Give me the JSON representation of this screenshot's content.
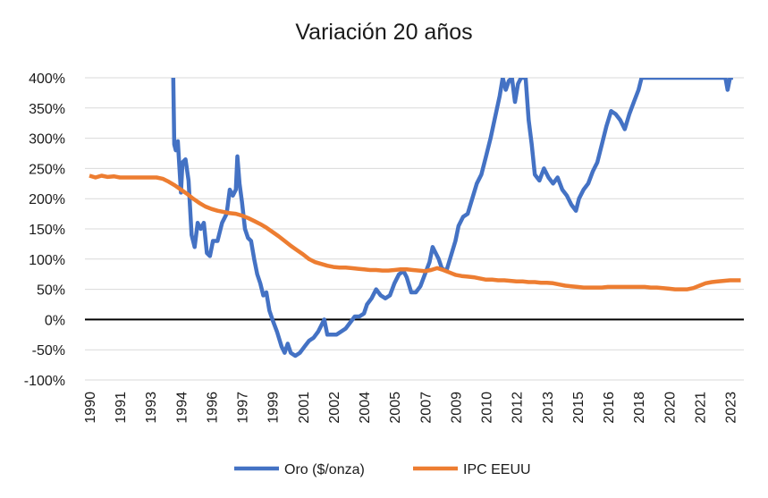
{
  "chart_data": {
    "type": "line",
    "title": "Variación 20 años",
    "xlabel": "",
    "ylabel": "",
    "ylim": [
      -100,
      400
    ],
    "y_ticks": [
      "-100%",
      "-50%",
      "0%",
      "50%",
      "100%",
      "150%",
      "200%",
      "250%",
      "300%",
      "350%",
      "400%"
    ],
    "x_ticks": [
      "1990",
      "1991",
      "1993",
      "1994",
      "1996",
      "1997",
      "1999",
      "2001",
      "2002",
      "2004",
      "2005",
      "2007",
      "2009",
      "2010",
      "2012",
      "2013",
      "2015",
      "2016",
      "2018",
      "2020",
      "2021",
      "2023"
    ],
    "grid": true,
    "legend_position": "bottom",
    "series": [
      {
        "name": "Oro ($/onza)",
        "color": "#4472C4",
        "points": [
          [
            2.75,
            400
          ],
          [
            2.78,
            290
          ],
          [
            2.83,
            280
          ],
          [
            2.9,
            295
          ],
          [
            3.0,
            210
          ],
          [
            3.05,
            260
          ],
          [
            3.15,
            265
          ],
          [
            3.25,
            230
          ],
          [
            3.35,
            140
          ],
          [
            3.45,
            120
          ],
          [
            3.55,
            160
          ],
          [
            3.65,
            150
          ],
          [
            3.75,
            160
          ],
          [
            3.85,
            110
          ],
          [
            3.95,
            105
          ],
          [
            4.05,
            130
          ],
          [
            4.2,
            130
          ],
          [
            4.35,
            160
          ],
          [
            4.5,
            175
          ],
          [
            4.6,
            215
          ],
          [
            4.7,
            205
          ],
          [
            4.8,
            215
          ],
          [
            4.85,
            270
          ],
          [
            4.92,
            225
          ],
          [
            5.0,
            195
          ],
          [
            5.1,
            150
          ],
          [
            5.2,
            135
          ],
          [
            5.3,
            130
          ],
          [
            5.4,
            100
          ],
          [
            5.5,
            75
          ],
          [
            5.6,
            60
          ],
          [
            5.7,
            40
          ],
          [
            5.8,
            45
          ],
          [
            5.9,
            15
          ],
          [
            6.0,
            0
          ],
          [
            6.15,
            -20
          ],
          [
            6.3,
            -45
          ],
          [
            6.4,
            -55
          ],
          [
            6.5,
            -40
          ],
          [
            6.6,
            -55
          ],
          [
            6.75,
            -60
          ],
          [
            6.9,
            -55
          ],
          [
            7.05,
            -45
          ],
          [
            7.2,
            -35
          ],
          [
            7.35,
            -30
          ],
          [
            7.5,
            -20
          ],
          [
            7.6,
            -10
          ],
          [
            7.7,
            0
          ],
          [
            7.8,
            -25
          ],
          [
            7.95,
            -25
          ],
          [
            8.1,
            -25
          ],
          [
            8.25,
            -20
          ],
          [
            8.4,
            -15
          ],
          [
            8.55,
            -5
          ],
          [
            8.7,
            5
          ],
          [
            8.85,
            5
          ],
          [
            9.0,
            10
          ],
          [
            9.1,
            25
          ],
          [
            9.25,
            35
          ],
          [
            9.4,
            50
          ],
          [
            9.55,
            40
          ],
          [
            9.7,
            35
          ],
          [
            9.85,
            40
          ],
          [
            10.0,
            60
          ],
          [
            10.15,
            75
          ],
          [
            10.3,
            80
          ],
          [
            10.4,
            70
          ],
          [
            10.55,
            45
          ],
          [
            10.7,
            45
          ],
          [
            10.85,
            55
          ],
          [
            11.0,
            75
          ],
          [
            11.15,
            95
          ],
          [
            11.25,
            120
          ],
          [
            11.35,
            110
          ],
          [
            11.45,
            100
          ],
          [
            11.55,
            85
          ],
          [
            11.7,
            80
          ],
          [
            11.85,
            105
          ],
          [
            12.0,
            130
          ],
          [
            12.1,
            155
          ],
          [
            12.25,
            170
          ],
          [
            12.4,
            175
          ],
          [
            12.55,
            200
          ],
          [
            12.7,
            225
          ],
          [
            12.85,
            240
          ],
          [
            13.0,
            270
          ],
          [
            13.15,
            300
          ],
          [
            13.3,
            335
          ],
          [
            13.45,
            370
          ],
          [
            13.55,
            400
          ],
          [
            13.65,
            380
          ],
          [
            13.75,
            395
          ],
          [
            13.85,
            400
          ],
          [
            13.95,
            360
          ],
          [
            14.05,
            390
          ],
          [
            14.15,
            400
          ],
          [
            14.3,
            400
          ],
          [
            14.4,
            330
          ],
          [
            14.5,
            290
          ],
          [
            14.6,
            240
          ],
          [
            14.75,
            230
          ],
          [
            14.9,
            250
          ],
          [
            15.05,
            235
          ],
          [
            15.2,
            225
          ],
          [
            15.35,
            235
          ],
          [
            15.5,
            215
          ],
          [
            15.65,
            205
          ],
          [
            15.8,
            190
          ],
          [
            15.95,
            180
          ],
          [
            16.05,
            200
          ],
          [
            16.2,
            215
          ],
          [
            16.35,
            225
          ],
          [
            16.5,
            245
          ],
          [
            16.65,
            260
          ],
          [
            16.8,
            290
          ],
          [
            16.95,
            320
          ],
          [
            17.1,
            345
          ],
          [
            17.25,
            340
          ],
          [
            17.4,
            330
          ],
          [
            17.55,
            315
          ],
          [
            17.7,
            340
          ],
          [
            17.85,
            360
          ],
          [
            18.0,
            380
          ],
          [
            18.1,
            400
          ],
          [
            18.25,
            400
          ],
          [
            18.45,
            400
          ],
          [
            20.85,
            400
          ],
          [
            20.92,
            380
          ],
          [
            21.0,
            400
          ],
          [
            21.1,
            400
          ]
        ]
      },
      {
        "name": "IPC EEUU",
        "color": "#ED7D31",
        "points": [
          [
            0.0,
            238
          ],
          [
            0.2,
            235
          ],
          [
            0.4,
            238
          ],
          [
            0.6,
            236
          ],
          [
            0.8,
            237
          ],
          [
            1.0,
            235
          ],
          [
            1.2,
            235
          ],
          [
            1.4,
            235
          ],
          [
            1.6,
            235
          ],
          [
            1.8,
            235
          ],
          [
            2.0,
            235
          ],
          [
            2.2,
            235
          ],
          [
            2.4,
            233
          ],
          [
            2.6,
            228
          ],
          [
            2.8,
            222
          ],
          [
            3.0,
            215
          ],
          [
            3.2,
            208
          ],
          [
            3.4,
            200
          ],
          [
            3.6,
            193
          ],
          [
            3.8,
            187
          ],
          [
            4.0,
            183
          ],
          [
            4.2,
            180
          ],
          [
            4.4,
            178
          ],
          [
            4.6,
            176
          ],
          [
            4.8,
            175
          ],
          [
            5.0,
            172
          ],
          [
            5.2,
            168
          ],
          [
            5.4,
            163
          ],
          [
            5.6,
            158
          ],
          [
            5.8,
            152
          ],
          [
            6.0,
            145
          ],
          [
            6.2,
            138
          ],
          [
            6.4,
            130
          ],
          [
            6.6,
            122
          ],
          [
            6.8,
            115
          ],
          [
            7.0,
            108
          ],
          [
            7.2,
            100
          ],
          [
            7.4,
            95
          ],
          [
            7.6,
            92
          ],
          [
            7.8,
            89
          ],
          [
            8.0,
            87
          ],
          [
            8.2,
            86
          ],
          [
            8.4,
            86
          ],
          [
            8.6,
            85
          ],
          [
            8.8,
            84
          ],
          [
            9.0,
            83
          ],
          [
            9.2,
            82
          ],
          [
            9.4,
            82
          ],
          [
            9.6,
            81
          ],
          [
            9.8,
            81
          ],
          [
            10.0,
            82
          ],
          [
            10.2,
            83
          ],
          [
            10.4,
            83
          ],
          [
            10.6,
            82
          ],
          [
            10.8,
            81
          ],
          [
            11.0,
            80
          ],
          [
            11.2,
            82
          ],
          [
            11.4,
            85
          ],
          [
            11.6,
            82
          ],
          [
            11.8,
            78
          ],
          [
            12.0,
            74
          ],
          [
            12.2,
            72
          ],
          [
            12.4,
            71
          ],
          [
            12.6,
            70
          ],
          [
            12.8,
            68
          ],
          [
            13.0,
            66
          ],
          [
            13.2,
            66
          ],
          [
            13.4,
            65
          ],
          [
            13.6,
            65
          ],
          [
            13.8,
            64
          ],
          [
            14.0,
            63
          ],
          [
            14.2,
            63
          ],
          [
            14.4,
            62
          ],
          [
            14.6,
            62
          ],
          [
            14.8,
            61
          ],
          [
            15.0,
            61
          ],
          [
            15.2,
            60
          ],
          [
            15.4,
            58
          ],
          [
            15.6,
            56
          ],
          [
            15.8,
            55
          ],
          [
            16.0,
            54
          ],
          [
            16.2,
            53
          ],
          [
            16.4,
            53
          ],
          [
            16.6,
            53
          ],
          [
            16.8,
            53
          ],
          [
            17.0,
            54
          ],
          [
            17.2,
            54
          ],
          [
            17.4,
            54
          ],
          [
            17.6,
            54
          ],
          [
            17.8,
            54
          ],
          [
            18.0,
            54
          ],
          [
            18.2,
            54
          ],
          [
            18.4,
            53
          ],
          [
            18.6,
            53
          ],
          [
            18.8,
            52
          ],
          [
            19.0,
            51
          ],
          [
            19.2,
            50
          ],
          [
            19.4,
            50
          ],
          [
            19.6,
            50
          ],
          [
            19.8,
            52
          ],
          [
            20.0,
            56
          ],
          [
            20.2,
            60
          ],
          [
            20.4,
            62
          ],
          [
            20.6,
            63
          ],
          [
            20.8,
            64
          ],
          [
            21.0,
            65
          ],
          [
            21.2,
            65
          ],
          [
            21.35,
            65
          ]
        ]
      }
    ]
  }
}
